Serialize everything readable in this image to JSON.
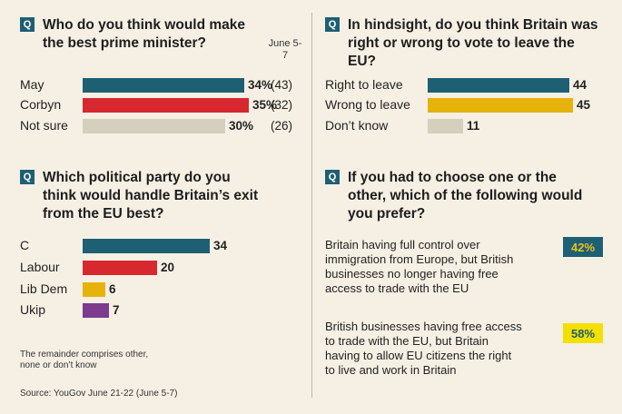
{
  "chart_data": [
    {
      "type": "bar",
      "question_marker": "Q",
      "title": "Who do you think would make the best prime minister?",
      "date_label": "June 5-7",
      "categories": [
        "May",
        "Corbyn",
        "Not sure"
      ],
      "values": [
        34,
        35,
        30
      ],
      "value_labels": [
        "34%",
        "35%",
        "30%"
      ],
      "previous_labels": [
        "(43)",
        "(32)",
        "(26)"
      ],
      "colors": [
        "#1f5f73",
        "#d7282f",
        "#d5cfbd"
      ],
      "xlim": [
        0,
        35
      ]
    },
    {
      "type": "bar",
      "question_marker": "Q",
      "title": "In hindsight, do you think Britain was right or wrong to vote to leave the EU?",
      "categories": [
        "Right to leave",
        "Wrong to leave",
        "Don’t know"
      ],
      "values": [
        44,
        45,
        11
      ],
      "value_labels": [
        "44",
        "45",
        "11"
      ],
      "colors": [
        "#1f5f73",
        "#e6b20c",
        "#d5cfbd"
      ],
      "xlim": [
        0,
        45
      ]
    },
    {
      "type": "bar",
      "question_marker": "Q",
      "title": "Which political party do you think would handle Britain’s exit from the EU best?",
      "categories": [
        "C",
        "Labour",
        "Lib Dem",
        "Ukip"
      ],
      "values": [
        34,
        20,
        6,
        7
      ],
      "value_labels": [
        "34",
        "20",
        "6",
        "7"
      ],
      "colors": [
        "#1f5f73",
        "#d7282f",
        "#e6b20c",
        "#7c3b8d"
      ],
      "xlim": [
        0,
        34
      ]
    },
    {
      "type": "table",
      "question_marker": "Q",
      "title": "If you had to choose one or the other, which of the following would you prefer?",
      "options": [
        {
          "lines": [
            "Britain having full control over",
            "immigration from Europe, but British",
            "businesses no longer having free",
            "access to trade with the EU"
          ],
          "value": 42,
          "label": "42%",
          "color": "#1f5f73",
          "text_color": "#e9c21a"
        },
        {
          "lines": [
            "British businesses having free access",
            "to trade with the EU, but Britain",
            "having to allow EU citizens the right",
            "to live and work in Britain"
          ],
          "value": 58,
          "label": "58%",
          "color": "#f3e000",
          "text_color": "#1f5f73"
        }
      ]
    }
  ],
  "footnote_lines": [
    "The remainder comprises other,",
    "none or don’t know"
  ],
  "source": "Source: YouGov June 21-22 (June 5-7)"
}
